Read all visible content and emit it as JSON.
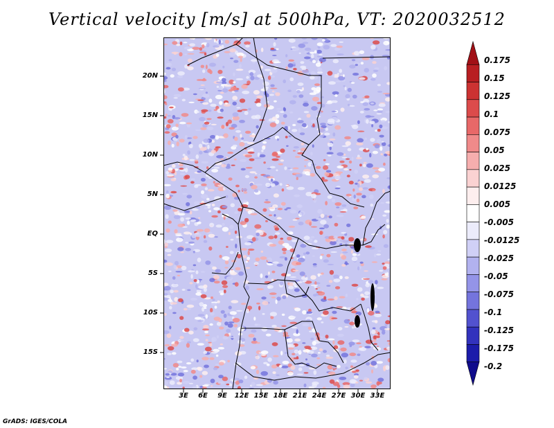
{
  "title": "Vertical velocity [m/s] at 500hPa, VT: 2020032512",
  "credit": "GrADS: IGES/COLA",
  "lat_labels": [
    "20N",
    "15N",
    "10N",
    "5N",
    "EQ",
    "5S",
    "10S",
    "15S"
  ],
  "lon_labels": [
    "3E",
    "6E",
    "9E",
    "12E",
    "15E",
    "18E",
    "21E",
    "24E",
    "27E",
    "30E",
    "33E"
  ],
  "colorbar": {
    "labels": [
      "0.175",
      "0.15",
      "0.125",
      "0.1",
      "0.075",
      "0.05",
      "0.025",
      "0.0125",
      "0.005",
      "-0.005",
      "-0.0125",
      "-0.025",
      "-0.05",
      "-0.075",
      "-0.1",
      "-0.125",
      "-0.175",
      "-0.2"
    ],
    "colors": [
      "#a11016",
      "#b81e22",
      "#cc3232",
      "#dc4b4b",
      "#e86868",
      "#f08a8a",
      "#f6aeae",
      "#fad2d2",
      "#fdeeee",
      "#ffffff",
      "#ececfb",
      "#d0d0f6",
      "#b2b2ef",
      "#9494e8",
      "#7474dd",
      "#5252cf",
      "#3232bd",
      "#1c1caa",
      "#100c8c"
    ]
  }
}
